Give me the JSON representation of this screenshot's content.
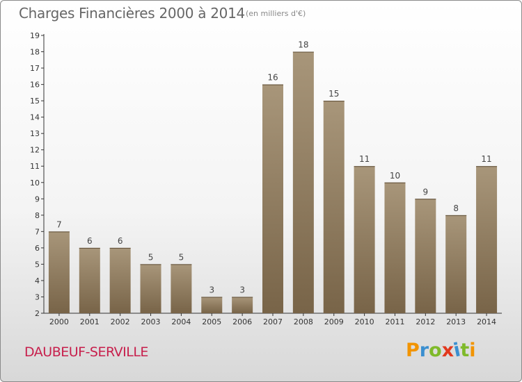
{
  "title": "Charges Financières 2000 à 2014",
  "subtitle": "(en milliers d'€)",
  "town": "DAUBEUF-SERVILLE",
  "brand": "Proxiti",
  "colors": {
    "bar_top": "#a8967a",
    "bar_bottom": "#786448",
    "brand_letters": [
      "#f29400",
      "#3a8fd0",
      "#7fba2a",
      "#e2391e",
      "#3a8fd0",
      "#7fba2a",
      "#f29400"
    ]
  },
  "chart_data": {
    "type": "bar",
    "categories": [
      "2000",
      "2001",
      "2002",
      "2003",
      "2004",
      "2005",
      "2006",
      "2007",
      "2008",
      "2009",
      "2010",
      "2011",
      "2012",
      "2013",
      "2014"
    ],
    "values": [
      7,
      6,
      6,
      5,
      5,
      3,
      3,
      16,
      18,
      15,
      11,
      10,
      9,
      8,
      11
    ],
    "ylim": [
      2,
      19
    ],
    "yticks": [
      2,
      3,
      4,
      5,
      6,
      7,
      8,
      9,
      10,
      11,
      12,
      13,
      14,
      15,
      16,
      17,
      18,
      19
    ],
    "grid": false,
    "legend": "none"
  }
}
